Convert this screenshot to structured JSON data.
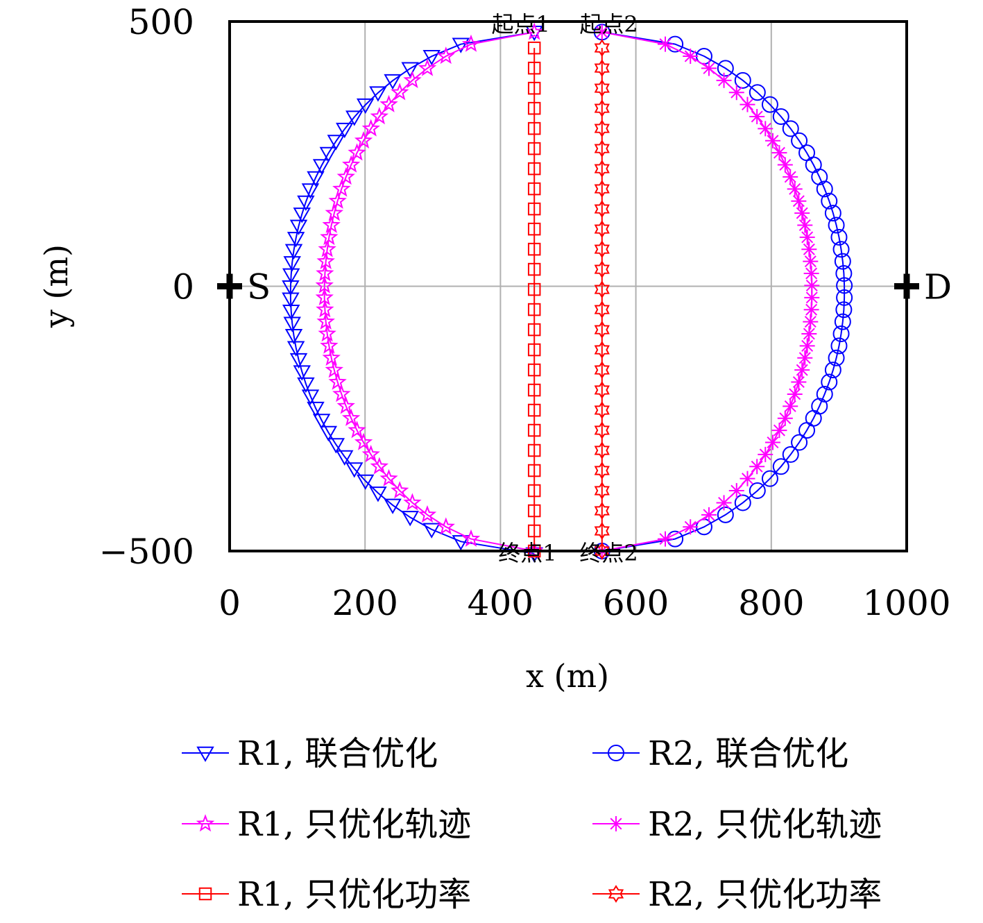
{
  "chart_data": {
    "type": "line",
    "xlabel": "x (m)",
    "ylabel": "y (m)",
    "xlim": [
      0,
      1000
    ],
    "ylim": [
      -500,
      500
    ],
    "x_ticks": [
      "0",
      "200",
      "400",
      "600",
      "800",
      "1000"
    ],
    "y_ticks": [
      "500",
      "0",
      "−500"
    ],
    "grid": true,
    "legend_position": "bottom",
    "points": [
      {
        "label": "S",
        "x": 0,
        "y": 0
      },
      {
        "label": "D",
        "x": 1000,
        "y": 0
      }
    ],
    "annotations": [
      {
        "text": "起点1",
        "x": 430,
        "y": 495
      },
      {
        "text": "起点2",
        "x": 560,
        "y": 495
      },
      {
        "text": "终点1",
        "x": 440,
        "y": -505
      },
      {
        "text": "终点2",
        "x": 560,
        "y": -505
      }
    ],
    "series": [
      {
        "name": "R1, 联合优化",
        "color": "#0000ff",
        "marker": "triangle-down",
        "shape": {
          "type": "arc",
          "x_end": 450,
          "x_extreme": 90,
          "y_start": 480,
          "y_end": -505
        }
      },
      {
        "name": "R2, 联合优化",
        "color": "#0000ff",
        "marker": "circle",
        "shape": {
          "type": "arc",
          "x_end": 550,
          "x_extreme": 908,
          "y_start": 480,
          "y_end": -500
        }
      },
      {
        "name": "R1, 只优化轨迹",
        "color": "#ff00ff",
        "marker": "pentagram",
        "shape": {
          "type": "arc",
          "x_end": 450,
          "x_extreme": 140,
          "y_start": 480,
          "y_end": -500
        }
      },
      {
        "name": "R2, 只优化轨迹",
        "color": "#ff00ff",
        "marker": "asterisk",
        "shape": {
          "type": "arc",
          "x_end": 550,
          "x_extreme": 860,
          "y_start": 480,
          "y_end": -500
        }
      },
      {
        "name": "R1, 只优化功率",
        "color": "#ff0000",
        "marker": "square",
        "shape": {
          "type": "vertical",
          "x": 450,
          "y_start": 450,
          "y_end": -500
        }
      },
      {
        "name": "R2, 只优化功率",
        "color": "#ff0000",
        "marker": "hexagram",
        "shape": {
          "type": "vertical",
          "x": 550,
          "y_start": 450,
          "y_end": -500
        }
      }
    ]
  }
}
